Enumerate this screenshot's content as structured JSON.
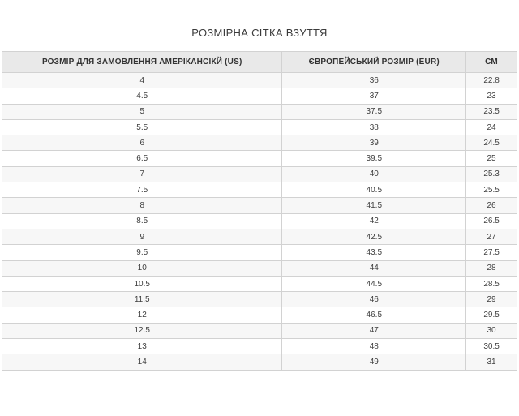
{
  "page": {
    "title": "РОЗМІРНА СІТКА ВЗУТТЯ"
  },
  "table": {
    "headers": [
      "РОЗМІР ДЛЯ ЗАМОВЛЕННЯ АМЕРІКАНСІКЙ (US)",
      "ЄВРОПЕЙСЬКИЙ РОЗМІР (EUR)",
      "СМ"
    ],
    "rows": [
      [
        "4",
        "36",
        "22.8"
      ],
      [
        "4.5",
        "37",
        "23"
      ],
      [
        "5",
        "37.5",
        "23.5"
      ],
      [
        "5.5",
        "38",
        "24"
      ],
      [
        "6",
        "39",
        "24.5"
      ],
      [
        "6.5",
        "39.5",
        "25"
      ],
      [
        "7",
        "40",
        "25.3"
      ],
      [
        "7.5",
        "40.5",
        "25.5"
      ],
      [
        "8",
        "41.5",
        "26"
      ],
      [
        "8.5",
        "42",
        "26.5"
      ],
      [
        "9",
        "42.5",
        "27"
      ],
      [
        "9.5",
        "43.5",
        "27.5"
      ],
      [
        "10",
        "44",
        "28"
      ],
      [
        "10.5",
        "44.5",
        "28.5"
      ],
      [
        "11.5",
        "46",
        "29"
      ],
      [
        "12",
        "46.5",
        "29.5"
      ],
      [
        "12.5",
        "47",
        "30"
      ],
      [
        "13",
        "48",
        "30.5"
      ],
      [
        "14",
        "49",
        "31"
      ]
    ]
  },
  "colors": {
    "header_bg": "#e9e9e9",
    "row_alt_bg": "#f7f7f7",
    "row_bg": "#ffffff",
    "border": "#d2d2d2",
    "text": "#404040",
    "title_text": "#3b3b3b"
  }
}
